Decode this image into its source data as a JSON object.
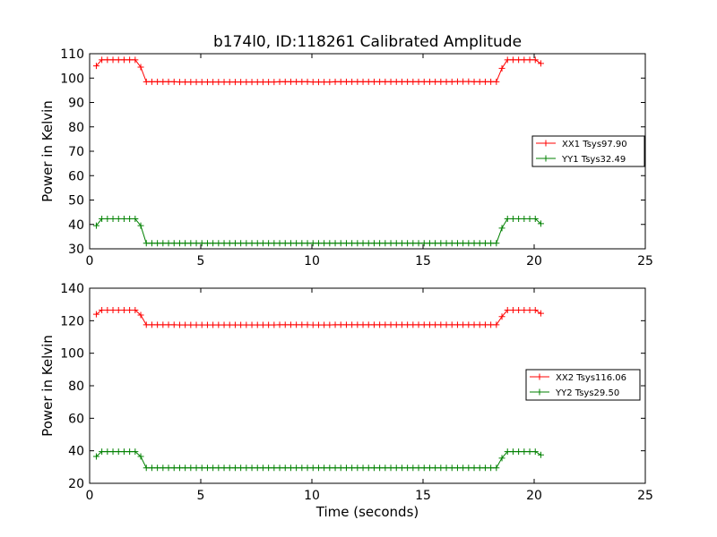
{
  "figure": {
    "title": "b174l0, ID:118261 Calibrated Amplitude"
  },
  "chart_data": [
    {
      "type": "line",
      "title": "b174l0, ID:118261 Calibrated Amplitude",
      "xlabel": "",
      "ylabel": "Power in Kelvin",
      "xlim": [
        0,
        25
      ],
      "ylim": [
        30,
        110
      ],
      "xticks": [
        "0",
        "5",
        "10",
        "15",
        "20",
        "25"
      ],
      "yticks": [
        "30",
        "40",
        "50",
        "60",
        "70",
        "80",
        "90",
        "100",
        "110"
      ],
      "grid": false,
      "legend_position": "right",
      "x": [
        0.3,
        0.55,
        0.8,
        1.05,
        1.3,
        1.55,
        1.8,
        2.05,
        2.3,
        2.55,
        2.8,
        3.05,
        3.3,
        3.55,
        3.8,
        4.05,
        4.3,
        4.55,
        4.8,
        5.05,
        5.3,
        5.55,
        5.8,
        6.05,
        6.3,
        6.55,
        6.8,
        7.05,
        7.3,
        7.55,
        7.8,
        8.05,
        8.3,
        8.55,
        8.8,
        9.05,
        9.3,
        9.55,
        9.8,
        10.05,
        10.3,
        10.55,
        10.8,
        11.05,
        11.3,
        11.55,
        11.8,
        12.05,
        12.3,
        12.55,
        12.8,
        13.05,
        13.3,
        13.55,
        13.8,
        14.05,
        14.3,
        14.55,
        14.8,
        15.05,
        15.3,
        15.55,
        15.8,
        16.05,
        16.3,
        16.55,
        16.8,
        17.05,
        17.3,
        17.55,
        17.8,
        18.05,
        18.3,
        18.55,
        18.8,
        19.05,
        19.3,
        19.55,
        19.8,
        20.05,
        20.3
      ],
      "series": [
        {
          "name": "XX1 Tsys97.90",
          "color": "#ff0000",
          "values": [
            105,
            107.5,
            107.5,
            107.5,
            107.5,
            107.5,
            107.5,
            107.5,
            104.5,
            98.5,
            98.5,
            98.5,
            98.5,
            98.5,
            98.5,
            98.4,
            98.4,
            98.4,
            98.4,
            98.4,
            98.4,
            98.4,
            98.4,
            98.4,
            98.4,
            98.4,
            98.4,
            98.4,
            98.4,
            98.4,
            98.4,
            98.4,
            98.4,
            98.5,
            98.5,
            98.5,
            98.5,
            98.5,
            98.5,
            98.4,
            98.4,
            98.4,
            98.4,
            98.5,
            98.5,
            98.5,
            98.5,
            98.5,
            98.5,
            98.5,
            98.5,
            98.5,
            98.5,
            98.5,
            98.5,
            98.5,
            98.5,
            98.5,
            98.5,
            98.5,
            98.5,
            98.5,
            98.5,
            98.5,
            98.5,
            98.6,
            98.6,
            98.6,
            98.5,
            98.5,
            98.5,
            98.5,
            98.5,
            104,
            107.5,
            107.5,
            107.5,
            107.5,
            107.5,
            107.5,
            106
          ]
        },
        {
          "name": "YY1 Tsys32.49",
          "color": "#008000",
          "values": [
            39.5,
            42.3,
            42.3,
            42.3,
            42.3,
            42.3,
            42.3,
            42.3,
            39.5,
            32.3,
            32.3,
            32.3,
            32.3,
            32.3,
            32.3,
            32.3,
            32.3,
            32.3,
            32.3,
            32.3,
            32.3,
            32.3,
            32.3,
            32.3,
            32.3,
            32.3,
            32.3,
            32.3,
            32.3,
            32.3,
            32.3,
            32.3,
            32.3,
            32.3,
            32.3,
            32.3,
            32.3,
            32.3,
            32.3,
            32.3,
            32.3,
            32.3,
            32.3,
            32.3,
            32.3,
            32.3,
            32.3,
            32.3,
            32.3,
            32.3,
            32.3,
            32.3,
            32.3,
            32.3,
            32.3,
            32.3,
            32.3,
            32.3,
            32.3,
            32.3,
            32.3,
            32.3,
            32.3,
            32.3,
            32.3,
            32.3,
            32.3,
            32.3,
            32.3,
            32.3,
            32.3,
            32.3,
            32.3,
            38.5,
            42.3,
            42.3,
            42.3,
            42.3,
            42.3,
            42.3,
            40.3
          ]
        }
      ]
    },
    {
      "type": "line",
      "title": "",
      "xlabel": "Time (seconds)",
      "ylabel": "Power in Kelvin",
      "xlim": [
        0,
        25
      ],
      "ylim": [
        20,
        140
      ],
      "xticks": [
        "0",
        "5",
        "10",
        "15",
        "20",
        "25"
      ],
      "yticks": [
        "20",
        "40",
        "60",
        "80",
        "100",
        "120",
        "140"
      ],
      "grid": false,
      "legend_position": "right",
      "x": [
        0.3,
        0.55,
        0.8,
        1.05,
        1.3,
        1.55,
        1.8,
        2.05,
        2.3,
        2.55,
        2.8,
        3.05,
        3.3,
        3.55,
        3.8,
        4.05,
        4.3,
        4.55,
        4.8,
        5.05,
        5.3,
        5.55,
        5.8,
        6.05,
        6.3,
        6.55,
        6.8,
        7.05,
        7.3,
        7.55,
        7.8,
        8.05,
        8.3,
        8.55,
        8.8,
        9.05,
        9.3,
        9.55,
        9.8,
        10.05,
        10.3,
        10.55,
        10.8,
        11.05,
        11.3,
        11.55,
        11.8,
        12.05,
        12.3,
        12.55,
        12.8,
        13.05,
        13.3,
        13.55,
        13.8,
        14.05,
        14.3,
        14.55,
        14.8,
        15.05,
        15.3,
        15.55,
        15.8,
        16.05,
        16.3,
        16.55,
        16.8,
        17.05,
        17.3,
        17.55,
        17.8,
        18.05,
        18.3,
        18.55,
        18.8,
        19.05,
        19.3,
        19.55,
        19.8,
        20.05,
        20.3
      ],
      "series": [
        {
          "name": "XX2 Tsys116.06",
          "color": "#ff0000",
          "values": [
            124,
            126.5,
            126.5,
            126.5,
            126.5,
            126.5,
            126.5,
            126.5,
            123.5,
            117.5,
            117.5,
            117.5,
            117.5,
            117.5,
            117.5,
            117.4,
            117.4,
            117.4,
            117.4,
            117.4,
            117.4,
            117.4,
            117.4,
            117.4,
            117.4,
            117.4,
            117.4,
            117.4,
            117.4,
            117.4,
            117.4,
            117.4,
            117.4,
            117.5,
            117.5,
            117.5,
            117.5,
            117.5,
            117.5,
            117.4,
            117.4,
            117.4,
            117.4,
            117.5,
            117.5,
            117.5,
            117.5,
            117.5,
            117.5,
            117.5,
            117.5,
            117.5,
            117.5,
            117.5,
            117.5,
            117.5,
            117.5,
            117.5,
            117.5,
            117.5,
            117.5,
            117.5,
            117.5,
            117.5,
            117.5,
            117.5,
            117.5,
            117.5,
            117.5,
            117.5,
            117.5,
            117.5,
            117.5,
            122.5,
            126.5,
            126.5,
            126.5,
            126.5,
            126.5,
            126.5,
            124.5
          ]
        },
        {
          "name": "YY2 Tsys29.50",
          "color": "#008000",
          "values": [
            36.5,
            39.5,
            39.5,
            39.5,
            39.5,
            39.5,
            39.5,
            39.5,
            36.5,
            29.5,
            29.5,
            29.5,
            29.5,
            29.5,
            29.5,
            29.5,
            29.5,
            29.5,
            29.5,
            29.5,
            29.5,
            29.5,
            29.5,
            29.5,
            29.5,
            29.5,
            29.5,
            29.5,
            29.5,
            29.5,
            29.5,
            29.5,
            29.5,
            29.5,
            29.5,
            29.5,
            29.5,
            29.5,
            29.5,
            29.5,
            29.5,
            29.5,
            29.5,
            29.5,
            29.5,
            29.5,
            29.5,
            29.5,
            29.5,
            29.5,
            29.5,
            29.5,
            29.5,
            29.5,
            29.5,
            29.5,
            29.5,
            29.5,
            29.5,
            29.5,
            29.5,
            29.5,
            29.5,
            29.5,
            29.5,
            29.5,
            29.5,
            29.5,
            29.5,
            29.5,
            29.5,
            29.5,
            29.5,
            35.5,
            39.5,
            39.5,
            39.5,
            39.5,
            39.5,
            39.5,
            37.5
          ]
        }
      ]
    }
  ]
}
